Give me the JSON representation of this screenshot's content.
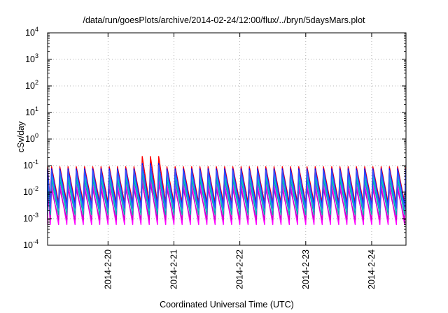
{
  "chart_data": {
    "type": "line",
    "title": "/data/run/goesPlots/archive/2014-02-24/12:00/flux/../bryn/5daysMars.plot",
    "xlabel": "Coordinated Universal Time (UTC)",
    "ylabel": "cSv/day",
    "yscale": "log",
    "ylim": [
      0.0001,
      10000
    ],
    "y_ticks": [
      {
        "value": 0.0001,
        "base": "10",
        "exp": "-4"
      },
      {
        "value": 0.001,
        "base": "10",
        "exp": "-3"
      },
      {
        "value": 0.01,
        "base": "10",
        "exp": "-2"
      },
      {
        "value": 0.1,
        "base": "10",
        "exp": "-1"
      },
      {
        "value": 1,
        "base": "10",
        "exp": "0"
      },
      {
        "value": 10,
        "base": "10",
        "exp": "1"
      },
      {
        "value": 100,
        "base": "10",
        "exp": "2"
      },
      {
        "value": 1000,
        "base": "10",
        "exp": "3"
      },
      {
        "value": 10000,
        "base": "10",
        "exp": "4"
      }
    ],
    "xlim": [
      "2014-02-19 02:00",
      "2014-02-24 12:30"
    ],
    "x_ticks": [
      "2014-2-20",
      "2014-2-21",
      "2014-2-22",
      "2014-2-23",
      "2014-2-24"
    ],
    "grid": true,
    "legend": "none",
    "period_hours": 3,
    "series": [
      {
        "color": "#ff0000",
        "peak": 0.09,
        "trough": 0.004
      },
      {
        "color": "#ff00ff",
        "peak": 0.02,
        "trough": 0.0006
      },
      {
        "color": "#cc00cc",
        "peak": 0.013,
        "trough": 0.0009
      },
      {
        "color": "#00aaaa",
        "peak": 0.03,
        "trough": 0.0014
      },
      {
        "color": "#00cccc",
        "peak": 0.045,
        "trough": 0.002
      },
      {
        "color": "#0000ff",
        "peak": 0.075,
        "trough": 0.003
      },
      {
        "color": "#3355ff",
        "peak": 0.065,
        "trough": 0.0025
      }
    ],
    "event": {
      "start": "2014-02-20 12:00",
      "end": "2014-02-20 21:00",
      "red_peak": 0.22,
      "blue_peak": 0.12
    }
  }
}
